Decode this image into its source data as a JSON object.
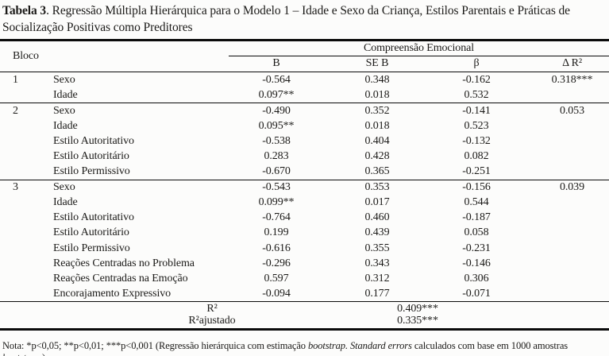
{
  "title": {
    "label": "Tabela 3",
    "rest": ". Regressão Múltipla Hierárquica para o Modelo 1 – Idade e Sexo da Criança, Estilos Parentais e Práticas de Socialização Positivas como Preditores"
  },
  "table": {
    "bloco_header": "Bloco",
    "spanner": "Compreensão Emocional",
    "columns": [
      "B",
      "SE B",
      "β",
      "Δ R²"
    ],
    "rows": [
      {
        "bloco": "1",
        "variable": "Sexo",
        "b": "-0.564",
        "se_b": "0.348",
        "beta": "-0.162",
        "delta_r2": "0.318***"
      },
      {
        "bloco": "",
        "variable": "Idade",
        "b": "0.097**",
        "se_b": "0.018",
        "beta": "0.532",
        "delta_r2": ""
      },
      {
        "bloco": "2",
        "variable": "Sexo",
        "b": "-0.490",
        "se_b": "0.352",
        "beta": "-0.141",
        "delta_r2": "0.053"
      },
      {
        "bloco": "",
        "variable": "Idade",
        "b": "0.095**",
        "se_b": "0.018",
        "beta": "0.523",
        "delta_r2": ""
      },
      {
        "bloco": "",
        "variable": "Estilo Autoritativo",
        "b": "-0.538",
        "se_b": "0.404",
        "beta": "-0.132",
        "delta_r2": ""
      },
      {
        "bloco": "",
        "variable": "Estilo Autoritário",
        "b": "0.283",
        "se_b": "0.428",
        "beta": "0.082",
        "delta_r2": ""
      },
      {
        "bloco": "",
        "variable": "Estilo Permissivo",
        "b": "-0.670",
        "se_b": "0.365",
        "beta": "-0.251",
        "delta_r2": ""
      },
      {
        "bloco": "3",
        "variable": "Sexo",
        "b": "-0.543",
        "se_b": "0.353",
        "beta": "-0.156",
        "delta_r2": "0.039"
      },
      {
        "bloco": "",
        "variable": "Idade",
        "b": "0.099**",
        "se_b": "0.017",
        "beta": "0.544",
        "delta_r2": ""
      },
      {
        "bloco": "",
        "variable": "Estilo Autoritativo",
        "b": "-0.764",
        "se_b": "0.460",
        "beta": "-0.187",
        "delta_r2": ""
      },
      {
        "bloco": "",
        "variable": "Estilo Autoritário",
        "b": "0.199",
        "se_b": "0.439",
        "beta": "0.058",
        "delta_r2": ""
      },
      {
        "bloco": "",
        "variable": "Estilo Permissivo",
        "b": "-0.616",
        "se_b": "0.355",
        "beta": "-0.231",
        "delta_r2": ""
      },
      {
        "bloco": "",
        "variable": "Reações Centradas no Problema",
        "b": "-0.296",
        "se_b": "0.343",
        "beta": "-0.146",
        "delta_r2": ""
      },
      {
        "bloco": "",
        "variable": "Reações Centradas na Emoção",
        "b": "0.597",
        "se_b": "0.312",
        "beta": "0.306",
        "delta_r2": ""
      },
      {
        "bloco": "",
        "variable": "Encorajamento Expressivo",
        "b": "-0.094",
        "se_b": "0.177",
        "beta": "-0.071",
        "delta_r2": ""
      }
    ],
    "summary": [
      {
        "label": "R²",
        "value": "0.409***"
      },
      {
        "label": "R²ajustado",
        "value": "0.335***"
      }
    ]
  },
  "note": {
    "segments": [
      {
        "text": "Nota: *p<0,05; **p<0,01; ***p<0,001 (Regressão hierárquica com estimação "
      },
      {
        "text": "bootstrap. Standard errors"
      },
      {
        "text": " calculados com base em 1000 amostras "
      },
      {
        "text": "bootstrap"
      },
      {
        "text": ".)"
      }
    ]
  }
}
